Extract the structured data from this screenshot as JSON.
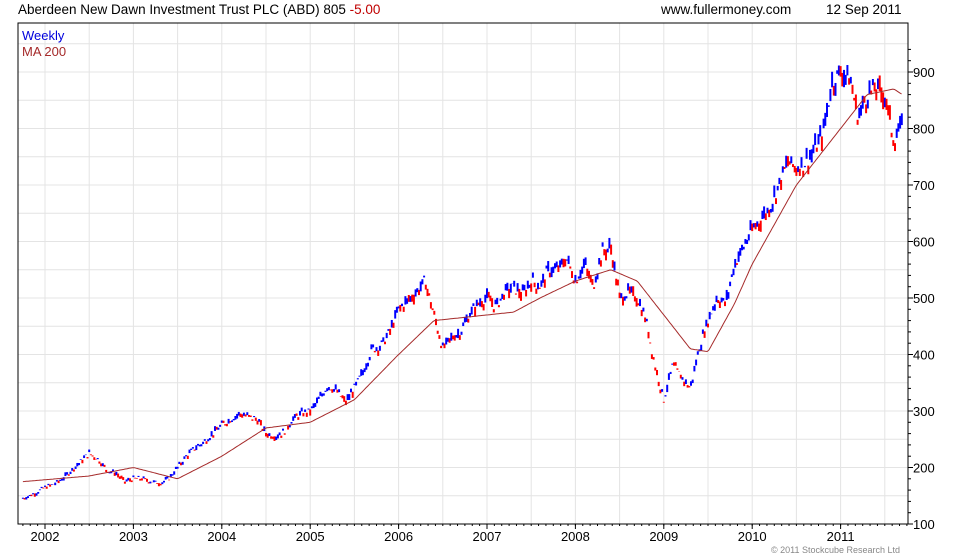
{
  "header": {
    "title": "Aberdeen New Dawn Investment Trust PLC (ABD) 805",
    "change": "-5.00",
    "site": "www.fullermoney.com",
    "date": "12 Sep 2011"
  },
  "footer": {
    "copyright": "© 2011 Stockcube Research Ltd"
  },
  "colors": {
    "up": "#0000ff",
    "down": "#ff0000",
    "ma": "#a52a2a",
    "grid": "#e4e4e4"
  },
  "chart_data": {
    "type": "line",
    "title": "Aberdeen New Dawn Investment Trust PLC (ABD)",
    "legend": [
      "Weekly",
      "MA 200"
    ],
    "legend_position": "top-left",
    "xlim": [
      2001.7,
      2011.78
    ],
    "ylim": [
      100,
      960
    ],
    "x_ticks": [
      "2002",
      "2003",
      "2004",
      "2005",
      "2006",
      "2007",
      "2008",
      "2009",
      "2010",
      "2011"
    ],
    "y_ticks": [
      100,
      200,
      300,
      400,
      500,
      600,
      700,
      800,
      900
    ],
    "grid": true,
    "series": [
      {
        "name": "Weekly",
        "x": [
          2001.75,
          2001.9,
          2002.0,
          2002.1,
          2002.2,
          2002.3,
          2002.4,
          2002.5,
          2002.6,
          2002.7,
          2002.8,
          2002.9,
          2003.0,
          2003.1,
          2003.2,
          2003.3,
          2003.4,
          2003.5,
          2003.6,
          2003.7,
          2003.8,
          2003.9,
          2004.0,
          2004.1,
          2004.2,
          2004.3,
          2004.4,
          2004.5,
          2004.6,
          2004.7,
          2004.8,
          2004.9,
          2005.0,
          2005.1,
          2005.2,
          2005.3,
          2005.4,
          2005.5,
          2005.6,
          2005.7,
          2005.8,
          2005.9,
          2006.0,
          2006.1,
          2006.2,
          2006.3,
          2006.4,
          2006.5,
          2006.6,
          2006.7,
          2006.8,
          2006.9,
          2007.0,
          2007.1,
          2007.2,
          2007.3,
          2007.4,
          2007.5,
          2007.6,
          2007.7,
          2007.8,
          2007.9,
          2008.0,
          2008.1,
          2008.2,
          2008.3,
          2008.4,
          2008.5,
          2008.6,
          2008.7,
          2008.8,
          2008.9,
          2009.0,
          2009.1,
          2009.2,
          2009.3,
          2009.4,
          2009.5,
          2009.6,
          2009.7,
          2009.8,
          2009.9,
          2010.0,
          2010.1,
          2010.2,
          2010.3,
          2010.4,
          2010.5,
          2010.6,
          2010.7,
          2010.8,
          2010.9,
          2011.0,
          2011.1,
          2011.2,
          2011.3,
          2011.4,
          2011.5,
          2011.6,
          2011.7
        ],
        "values": [
          145,
          155,
          165,
          170,
          180,
          195,
          210,
          225,
          215,
          195,
          190,
          175,
          180,
          180,
          175,
          172,
          180,
          200,
          220,
          235,
          245,
          260,
          275,
          285,
          295,
          290,
          285,
          260,
          255,
          262,
          285,
          295,
          300,
          320,
          345,
          335,
          315,
          340,
          370,
          410,
          415,
          440,
          480,
          495,
          510,
          530,
          470,
          410,
          430,
          440,
          470,
          490,
          500,
          485,
          510,
          520,
          505,
          530,
          520,
          550,
          550,
          570,
          530,
          560,
          520,
          580,
          590,
          500,
          510,
          500,
          460,
          380,
          320,
          380,
          360,
          340,
          410,
          460,
          500,
          490,
          560,
          590,
          620,
          640,
          660,
          700,
          740,
          730,
          740,
          760,
          790,
          880,
          900,
          890,
          820,
          860,
          870,
          860,
          780,
          805
        ]
      },
      {
        "name": "MA 200",
        "x": [
          2001.75,
          2002.5,
          2003.0,
          2003.5,
          2004.0,
          2004.5,
          2005.0,
          2005.5,
          2006.0,
          2006.4,
          2007.0,
          2007.3,
          2007.6,
          2008.0,
          2008.4,
          2008.7,
          2009.0,
          2009.3,
          2009.5,
          2009.8,
          2010.0,
          2010.5,
          2011.0,
          2011.3,
          2011.6,
          2011.7
        ],
        "values": [
          175,
          185,
          200,
          180,
          220,
          270,
          280,
          320,
          400,
          460,
          470,
          475,
          500,
          530,
          550,
          530,
          470,
          410,
          405,
          490,
          560,
          700,
          800,
          860,
          870,
          860
        ]
      }
    ]
  }
}
